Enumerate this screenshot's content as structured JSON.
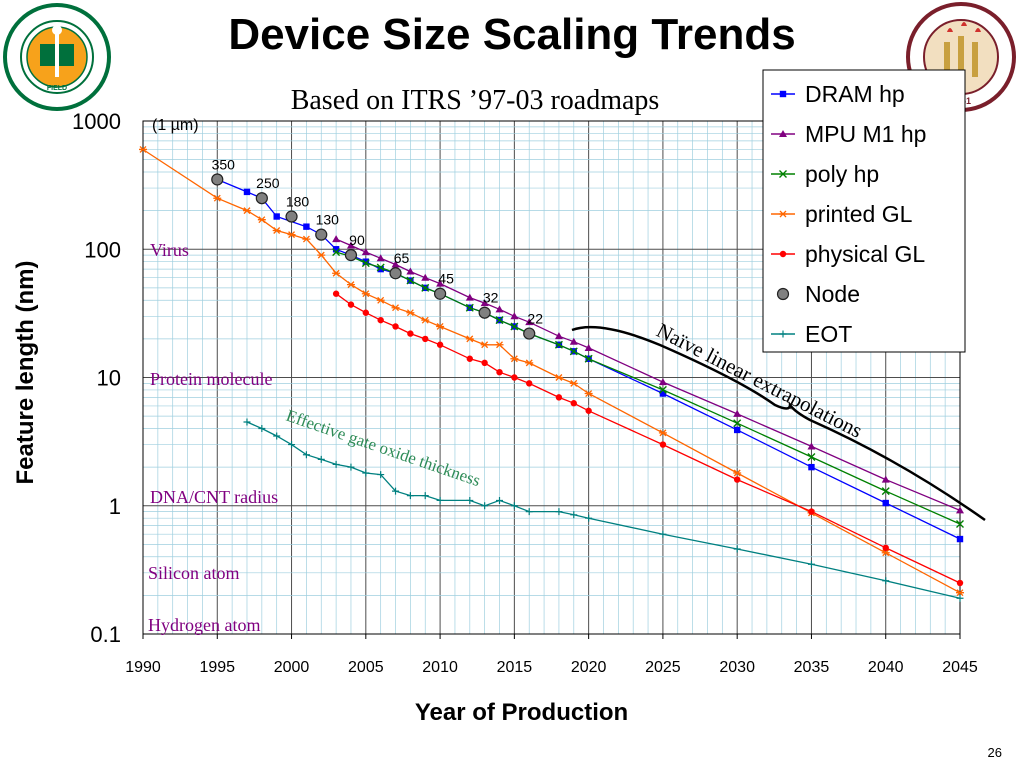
{
  "slide": {
    "title": "Device Size Scaling Trends",
    "subtitle": "Based on ITRS ’97-03 roadmaps",
    "page_number": "26",
    "seal_left_text": "FLORIDA AGRICULTURAL MECHANICAL UNIVERSITY",
    "seal_right_text": "FLORIDA STATE UNIVERSITY 1851"
  },
  "colors": {
    "dram": "#0000ff",
    "mpu": "#800080",
    "poly": "#008000",
    "printed": "#ff6600",
    "physical": "#ff0000",
    "node": "#808080",
    "eot": "#008080",
    "grid": "#9fcfdf",
    "annotation_purple": "#800080",
    "annotation_teal": "#2e8b57",
    "fsu_garnet": "#7a1f2b",
    "famu_green": "#00703c"
  },
  "chart_data": {
    "type": "line",
    "yscale": "log",
    "xlim": [
      1990,
      2045
    ],
    "ylim": [
      0.1,
      1000
    ],
    "xlabel": "Year of Production",
    "ylabel": "Feature length (nm)",
    "x_ticks": [
      1990,
      1995,
      2000,
      2005,
      2010,
      2015,
      2020,
      2025,
      2030,
      2035,
      2040,
      2045
    ],
    "y_ticks": [
      {
        "v": 1000,
        "label": "1000"
      },
      {
        "v": 100,
        "label": "100"
      },
      {
        "v": 10,
        "label": "10"
      },
      {
        "v": 1,
        "label": "1"
      },
      {
        "v": 0.1,
        "label": "0.1"
      }
    ],
    "grid": true,
    "legend_position": "top-right",
    "series": [
      {
        "name": "DRAM hp",
        "color": "#0000ff",
        "marker": "square",
        "points": [
          [
            1995,
            350
          ],
          [
            1997,
            280
          ],
          [
            1998,
            250
          ],
          [
            1999,
            180
          ],
          [
            2001,
            150
          ],
          [
            2002,
            130
          ],
          [
            2003,
            100
          ],
          [
            2004,
            90
          ],
          [
            2005,
            80
          ],
          [
            2006,
            70
          ],
          [
            2007,
            65
          ],
          [
            2008,
            57
          ],
          [
            2009,
            50
          ],
          [
            2010,
            45
          ],
          [
            2012,
            35
          ],
          [
            2013,
            32
          ],
          [
            2014,
            28
          ],
          [
            2015,
            25
          ],
          [
            2016,
            22
          ],
          [
            2018,
            18
          ],
          [
            2019,
            16
          ],
          [
            2020,
            14
          ],
          [
            2025,
            7.5
          ],
          [
            2030,
            3.9
          ],
          [
            2035,
            2.0
          ],
          [
            2040,
            1.05
          ],
          [
            2045,
            0.55
          ]
        ]
      },
      {
        "name": "MPU M1 hp",
        "color": "#800080",
        "marker": "triangle",
        "points": [
          [
            2003,
            120
          ],
          [
            2004,
            107
          ],
          [
            2005,
            95
          ],
          [
            2006,
            85
          ],
          [
            2007,
            76
          ],
          [
            2008,
            67
          ],
          [
            2009,
            60
          ],
          [
            2010,
            54
          ],
          [
            2012,
            42
          ],
          [
            2013,
            38
          ],
          [
            2014,
            34
          ],
          [
            2015,
            30
          ],
          [
            2016,
            27
          ],
          [
            2018,
            21
          ],
          [
            2019,
            19
          ],
          [
            2020,
            17
          ],
          [
            2025,
            9.2
          ],
          [
            2030,
            5.2
          ],
          [
            2035,
            2.9
          ],
          [
            2040,
            1.6
          ],
          [
            2045,
            0.92
          ]
        ]
      },
      {
        "name": "poly hp",
        "color": "#008000",
        "marker": "x",
        "points": [
          [
            2003,
            95
          ],
          [
            2004,
            88
          ],
          [
            2005,
            78
          ],
          [
            2006,
            72
          ],
          [
            2007,
            65
          ],
          [
            2008,
            57
          ],
          [
            2009,
            50
          ],
          [
            2010,
            45
          ],
          [
            2012,
            35
          ],
          [
            2013,
            32
          ],
          [
            2014,
            28
          ],
          [
            2015,
            25
          ],
          [
            2016,
            22
          ],
          [
            2018,
            18
          ],
          [
            2019,
            16
          ],
          [
            2020,
            14
          ],
          [
            2025,
            8
          ],
          [
            2030,
            4.4
          ],
          [
            2035,
            2.4
          ],
          [
            2040,
            1.3
          ],
          [
            2045,
            0.72
          ]
        ]
      },
      {
        "name": "printed GL",
        "color": "#ff6600",
        "marker": "asterisk",
        "points": [
          [
            1990,
            600
          ],
          [
            1995,
            250
          ],
          [
            1997,
            200
          ],
          [
            1998,
            170
          ],
          [
            1999,
            140
          ],
          [
            2000,
            130
          ],
          [
            2001,
            120
          ],
          [
            2002,
            90
          ],
          [
            2003,
            65
          ],
          [
            2004,
            53
          ],
          [
            2005,
            45
          ],
          [
            2006,
            40
          ],
          [
            2007,
            35
          ],
          [
            2008,
            32
          ],
          [
            2009,
            28
          ],
          [
            2010,
            25
          ],
          [
            2012,
            20
          ],
          [
            2013,
            18
          ],
          [
            2014,
            18
          ],
          [
            2015,
            14
          ],
          [
            2016,
            13
          ],
          [
            2018,
            10
          ],
          [
            2019,
            9
          ],
          [
            2020,
            7.5
          ],
          [
            2025,
            3.7
          ],
          [
            2030,
            1.8
          ],
          [
            2035,
            0.88
          ],
          [
            2040,
            0.43
          ],
          [
            2045,
            0.21
          ]
        ]
      },
      {
        "name": "physical GL",
        "color": "#ff0000",
        "marker": "circle",
        "points": [
          [
            2003,
            45
          ],
          [
            2004,
            37
          ],
          [
            2005,
            32
          ],
          [
            2006,
            28
          ],
          [
            2007,
            25
          ],
          [
            2008,
            22
          ],
          [
            2009,
            20
          ],
          [
            2010,
            18
          ],
          [
            2012,
            14
          ],
          [
            2013,
            13
          ],
          [
            2014,
            11
          ],
          [
            2015,
            10
          ],
          [
            2016,
            9
          ],
          [
            2018,
            7
          ],
          [
            2019,
            6.3
          ],
          [
            2020,
            5.5
          ],
          [
            2025,
            3.0
          ],
          [
            2030,
            1.6
          ],
          [
            2035,
            0.9
          ],
          [
            2040,
            0.47
          ],
          [
            2045,
            0.25
          ]
        ]
      },
      {
        "name": "Node",
        "color": "#808080",
        "marker": "bigcircle",
        "labels": true,
        "points": [
          [
            1995,
            350,
            "350"
          ],
          [
            1998,
            250,
            "250"
          ],
          [
            2000,
            180,
            "180"
          ],
          [
            2002,
            130,
            "130"
          ],
          [
            2004,
            90,
            "90"
          ],
          [
            2007,
            65,
            "65"
          ],
          [
            2010,
            45,
            "45"
          ],
          [
            2013,
            32,
            "32"
          ],
          [
            2016,
            22,
            "22"
          ]
        ]
      },
      {
        "name": "EOT",
        "color": "#008080",
        "marker": "plus",
        "points": [
          [
            1997,
            4.5
          ],
          [
            1998,
            4
          ],
          [
            1999,
            3.5
          ],
          [
            2000,
            3
          ],
          [
            2001,
            2.5
          ],
          [
            2002,
            2.3
          ],
          [
            2003,
            2.1
          ],
          [
            2004,
            2
          ],
          [
            2005,
            1.8
          ],
          [
            2006,
            1.75
          ],
          [
            2007,
            1.3
          ],
          [
            2008,
            1.2
          ],
          [
            2009,
            1.2
          ],
          [
            2010,
            1.1
          ],
          [
            2012,
            1.1
          ],
          [
            2013,
            1.0
          ],
          [
            2014,
            1.1
          ],
          [
            2015,
            1.0
          ],
          [
            2016,
            0.9
          ],
          [
            2018,
            0.9
          ],
          [
            2019,
            0.85
          ],
          [
            2020,
            0.8
          ],
          [
            2025,
            0.6
          ],
          [
            2030,
            0.46
          ],
          [
            2035,
            0.35
          ],
          [
            2040,
            0.26
          ],
          [
            2045,
            0.19
          ]
        ]
      }
    ],
    "annotations": {
      "one_micron": "(1 µm)",
      "virus": "Virus",
      "protein": "Protein molecule",
      "dna": "DNA/CNT radius",
      "silicon": "Silicon atom",
      "hydrogen": "Hydrogen atom",
      "eot_text": "Effective gate oxide thickness",
      "extrapolation": "Naïve linear extrapolations"
    }
  }
}
